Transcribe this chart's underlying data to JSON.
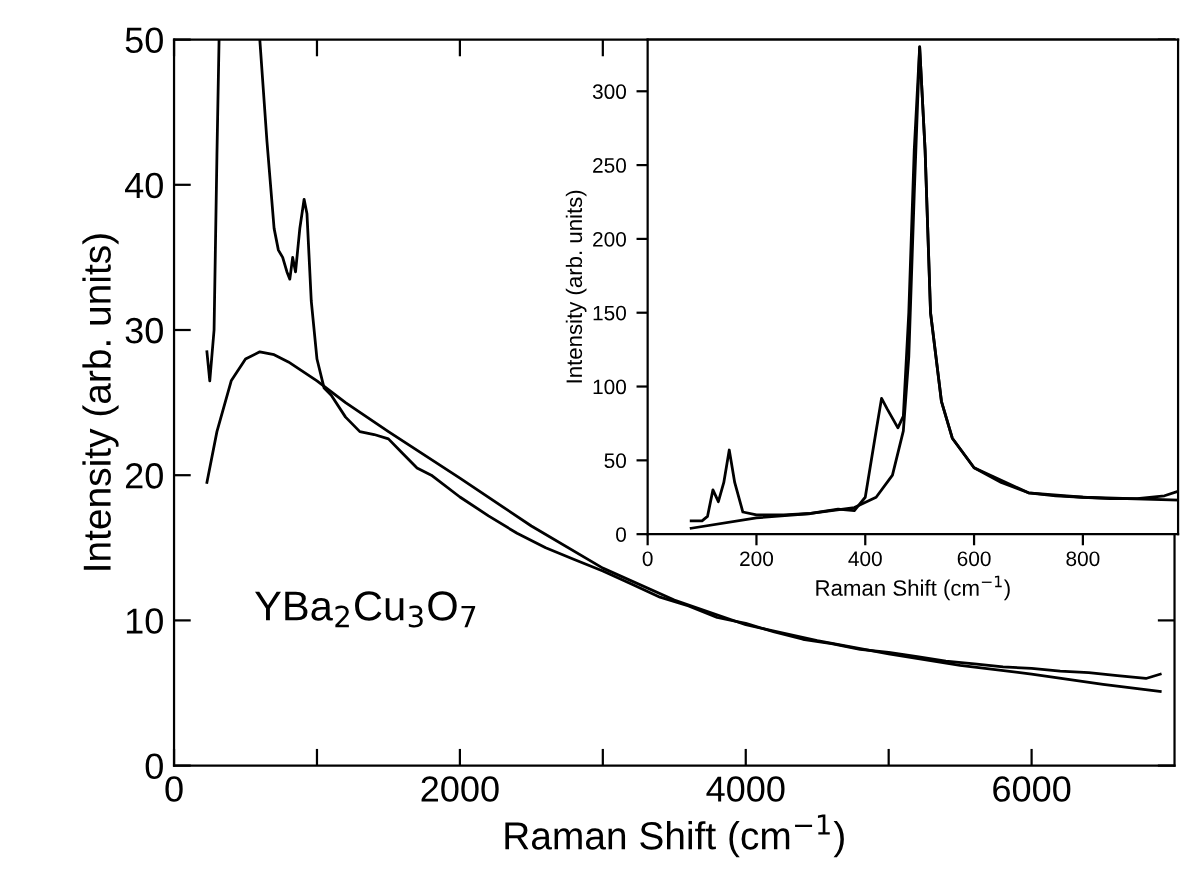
{
  "chart_data": [
    {
      "type": "line",
      "xlabel": "Raman Shift (cm$^{−1}$)",
      "ylabel": "Intensity (arb. units)",
      "xlim": [
        0,
        7000
      ],
      "ylim": [
        0,
        50
      ],
      "xticks": [
        0,
        {
          "value": 1000,
          "label": null
        },
        2000,
        {
          "value": 3000,
          "label": null
        },
        4000,
        {
          "value": 5000,
          "label": null
        },
        6000
      ],
      "yticks": [
        0,
        10,
        20,
        30,
        40,
        50
      ],
      "annotations": [
        "YBa$_{2}$Cu$_{3}$O$_{7}$"
      ],
      "series": [
        {
          "color": "#000000",
          "x": [
            230,
            250,
            280,
            300,
            315,
            320,
            590,
            600,
            650,
            700,
            730,
            760,
            790,
            810,
            830,
            850,
            880,
            910,
            930,
            960,
            1000,
            1050,
            1100,
            1200,
            1300,
            1400,
            1500,
            1600,
            1700,
            1800,
            2000,
            2200,
            2400,
            2600,
            2800,
            3000,
            3200,
            3400,
            3600,
            3800,
            4000,
            4200,
            4400,
            4600,
            4800,
            5000,
            5200,
            5400,
            5600,
            5800,
            6000,
            6200,
            6400,
            6600,
            6800,
            6900
          ],
          "values": [
            28.5,
            26.5,
            30,
            42,
            50,
            null,
            null,
            50,
            43,
            37,
            35.5,
            35,
            34,
            33.5,
            35,
            34,
            37,
            39,
            38,
            32,
            28,
            26,
            25.5,
            24,
            23,
            22.8,
            22.5,
            21.5,
            20.5,
            20,
            18.5,
            17.2,
            16,
            15,
            14.2,
            13.4,
            12.5,
            11.6,
            11,
            10.2,
            9.8,
            9.2,
            8.7,
            8.4,
            8.0,
            7.8,
            7.5,
            7.2,
            7.0,
            6.8,
            6.7,
            6.5,
            6.4,
            6.2,
            6.0,
            6.3
          ]
        },
        {
          "color": "#000000",
          "x": [
            230,
            300,
            400,
            500,
            600,
            700,
            800,
            1000,
            1200,
            1500,
            2000,
            2500,
            3000,
            3500,
            4000,
            4500,
            5000,
            5500,
            6000,
            6500,
            6900
          ],
          "values": [
            19.5,
            23,
            26.5,
            28,
            28.5,
            28.3,
            27.8,
            26.5,
            25,
            23,
            19.8,
            16.5,
            13.6,
            11.4,
            9.7,
            8.6,
            7.7,
            6.9,
            6.3,
            5.6,
            5.1
          ]
        }
      ]
    },
    {
      "type": "line",
      "xlabel": "Raman Shift (cm$^{−1}$)",
      "ylabel": "Intensity (arb. units)",
      "xlim": [
        0,
        975
      ],
      "ylim": [
        0,
        335
      ],
      "xticks": [
        0,
        200,
        400,
        600,
        800
      ],
      "yticks": [
        0,
        50,
        100,
        150,
        200,
        250,
        300
      ],
      "grid": false,
      "series": [
        {
          "color": "#000000",
          "x": [
            80,
            100,
            110,
            120,
            130,
            140,
            150,
            160,
            175,
            200,
            250,
            300,
            350,
            380,
            400,
            420,
            430,
            440,
            460,
            470,
            480,
            490,
            500,
            510,
            520,
            540,
            560,
            600,
            650,
            700,
            750,
            800,
            850,
            900,
            950,
            975
          ],
          "values": [
            9,
            9,
            12,
            30,
            22,
            35,
            57,
            35,
            15,
            13,
            13,
            14,
            17,
            16,
            25,
            70,
            92,
            85,
            72,
            80,
            150,
            260,
            330,
            260,
            150,
            90,
            65,
            45,
            35,
            28,
            26,
            25,
            24,
            24,
            26,
            29
          ]
        },
        {
          "color": "#000000",
          "x": [
            80,
            200,
            300,
            380,
            420,
            450,
            470,
            480,
            490,
            500,
            510,
            520,
            540,
            560,
            600,
            700,
            800,
            975
          ],
          "values": [
            4,
            11,
            14,
            18,
            25,
            40,
            70,
            120,
            230,
            330,
            260,
            150,
            90,
            65,
            45,
            28,
            25,
            23
          ]
        }
      ]
    }
  ]
}
